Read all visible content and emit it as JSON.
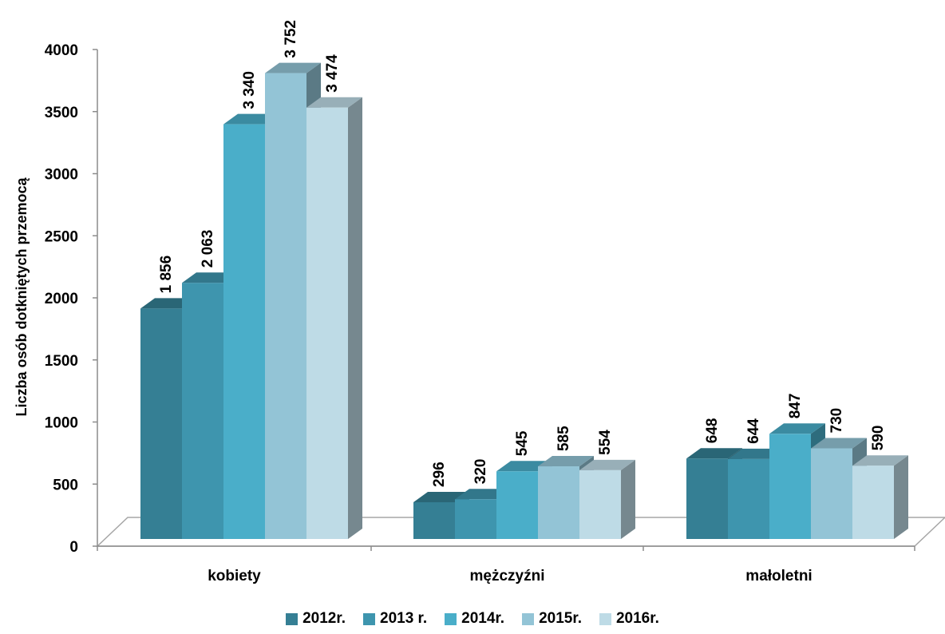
{
  "chart_data": {
    "type": "bar",
    "title": "",
    "ylabel": "Liczba osób dotkniętych przemocą",
    "xlabel": "",
    "ylim": [
      0,
      4000
    ],
    "yticks": [
      0,
      500,
      1000,
      1500,
      2000,
      2500,
      3000,
      3500,
      4000
    ],
    "categories": [
      "kobiety",
      "mężczyźni",
      "małoletni"
    ],
    "series": [
      {
        "name": "2012r.",
        "color": "#357f94",
        "values": [
          1856,
          296,
          648
        ],
        "labels": [
          "1 856",
          "296",
          "648"
        ]
      },
      {
        "name": "2013 r.",
        "color": "#3e95ae",
        "values": [
          2063,
          320,
          644
        ],
        "labels": [
          "2 063",
          "320",
          "644"
        ]
      },
      {
        "name": "2014r.",
        "color": "#4aaec9",
        "values": [
          3340,
          545,
          847
        ],
        "labels": [
          "3 340",
          "545",
          "847"
        ]
      },
      {
        "name": "2015r.",
        "color": "#93c4d6",
        "values": [
          3752,
          585,
          730
        ],
        "labels": [
          "3 752",
          "585",
          "730"
        ]
      },
      {
        "name": "2016r.",
        "color": "#bedbe6",
        "values": [
          3474,
          554,
          590
        ],
        "labels": [
          "3 474",
          "554",
          "590"
        ]
      }
    ],
    "legend_position": "bottom",
    "grid": false,
    "three_d": true
  }
}
